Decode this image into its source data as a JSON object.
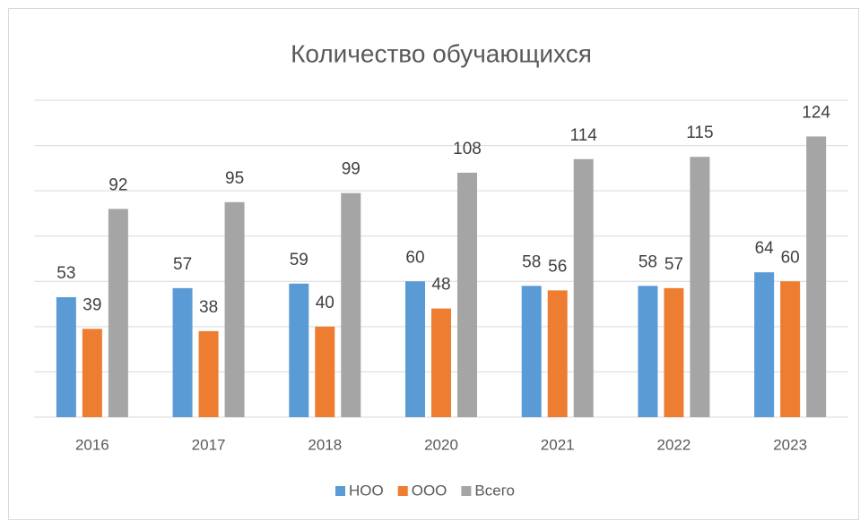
{
  "chart_data": {
    "type": "bar",
    "title": "Количество обучающихся",
    "categories": [
      "2016",
      "2017",
      "2018",
      "2020",
      "2021",
      "2022",
      "2023"
    ],
    "series": [
      {
        "name": "НОО",
        "color": "#5b9bd5",
        "values": [
          53,
          57,
          59,
          60,
          58,
          58,
          64
        ]
      },
      {
        "name": "ООО",
        "color": "#ed7d31",
        "values": [
          39,
          38,
          40,
          48,
          56,
          57,
          60
        ]
      },
      {
        "name": "Всего",
        "color": "#a5a5a5",
        "values": [
          92,
          95,
          99,
          108,
          114,
          115,
          124
        ]
      }
    ],
    "ylim": [
      0,
      140
    ],
    "yticks": [
      0,
      20,
      40,
      60,
      80,
      100,
      120,
      140
    ],
    "grid": true,
    "legend": "bottom"
  }
}
